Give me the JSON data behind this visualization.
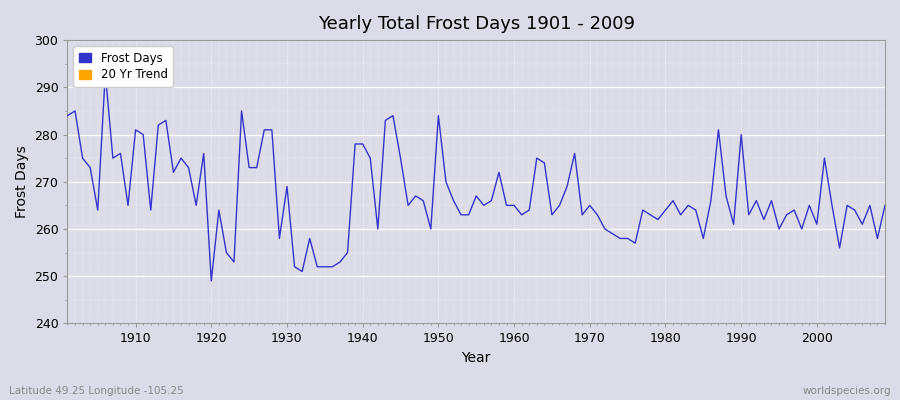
{
  "title": "Yearly Total Frost Days 1901 - 2009",
  "xlabel": "Year",
  "ylabel": "Frost Days",
  "subtitle_left": "Latitude 49.25 Longitude -105.25",
  "subtitle_right": "worldspecies.org",
  "legend_entries": [
    "Frost Days",
    "20 Yr Trend"
  ],
  "legend_colors": [
    "#3333cc",
    "#ffa500"
  ],
  "line_color": "#3333cc",
  "bg_color": "#dcdce8",
  "plot_bg": "#dcdce8",
  "ylim": [
    240,
    300
  ],
  "xlim": [
    1901,
    2009
  ],
  "yticks": [
    240,
    250,
    260,
    270,
    280,
    290,
    300
  ],
  "xticks": [
    1910,
    1920,
    1930,
    1940,
    1950,
    1960,
    1970,
    1980,
    1990,
    2000
  ],
  "years": [
    1901,
    1902,
    1903,
    1904,
    1905,
    1906,
    1907,
    1908,
    1909,
    1910,
    1911,
    1912,
    1913,
    1914,
    1915,
    1916,
    1917,
    1918,
    1919,
    1920,
    1921,
    1922,
    1923,
    1924,
    1925,
    1926,
    1927,
    1928,
    1929,
    1930,
    1931,
    1932,
    1933,
    1934,
    1935,
    1936,
    1937,
    1938,
    1939,
    1940,
    1941,
    1942,
    1943,
    1944,
    1945,
    1946,
    1947,
    1948,
    1949,
    1950,
    1951,
    1952,
    1953,
    1954,
    1955,
    1956,
    1957,
    1958,
    1959,
    1960,
    1961,
    1962,
    1963,
    1964,
    1965,
    1966,
    1967,
    1968,
    1969,
    1970,
    1971,
    1972,
    1973,
    1974,
    1975,
    1976,
    1977,
    1978,
    1979,
    1980,
    1981,
    1982,
    1983,
    1984,
    1985,
    1986,
    1987,
    1988,
    1989,
    1990,
    1991,
    1992,
    1993,
    1994,
    1995,
    1996,
    1997,
    1998,
    1999,
    2000,
    2001,
    2002,
    2003,
    2004,
    2005,
    2006,
    2007,
    2008,
    2009
  ],
  "values": [
    284,
    285,
    275,
    273,
    264,
    293,
    275,
    276,
    265,
    281,
    280,
    264,
    282,
    283,
    272,
    275,
    273,
    265,
    276,
    249,
    264,
    255,
    253,
    285,
    273,
    273,
    281,
    281,
    258,
    269,
    252,
    251,
    258,
    252,
    252,
    252,
    253,
    255,
    278,
    278,
    275,
    260,
    283,
    284,
    275,
    265,
    267,
    266,
    260,
    284,
    270,
    266,
    263,
    263,
    267,
    265,
    266,
    272,
    265,
    265,
    263,
    264,
    275,
    274,
    263,
    265,
    269,
    276,
    263,
    265,
    263,
    260,
    259,
    258,
    258,
    257,
    264,
    263,
    262,
    264,
    266,
    263,
    265,
    264,
    258,
    266,
    281,
    267,
    261,
    280,
    263,
    266,
    262,
    266,
    260,
    263,
    264,
    260,
    265,
    261,
    275,
    265,
    256,
    265,
    264,
    261,
    265,
    258,
    265
  ]
}
